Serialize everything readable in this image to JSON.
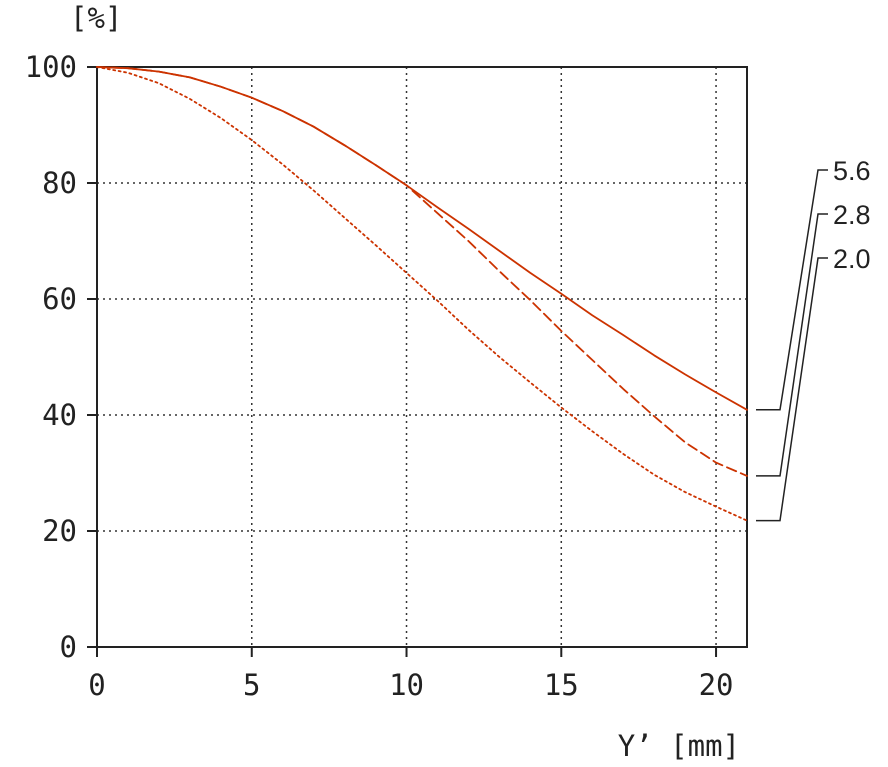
{
  "chart_data": {
    "type": "line",
    "xlabel": "Y’  [mm]",
    "ylabel": "[%]",
    "xlim": [
      0,
      21
    ],
    "ylim": [
      0,
      100
    ],
    "xticks": [
      0,
      5,
      10,
      15,
      20
    ],
    "yticks": [
      0,
      20,
      40,
      60,
      80,
      100
    ],
    "grid": true,
    "legend_placement": "right",
    "series": [
      {
        "name": "5.6",
        "style": "solid",
        "color": "#cc3300",
        "x": [
          0,
          1,
          2,
          3,
          4,
          5,
          6,
          7,
          8,
          9,
          10,
          11,
          12,
          13,
          14,
          15,
          16,
          17,
          18,
          19,
          20,
          21
        ],
        "y": [
          100,
          99.8,
          99.2,
          98.2,
          96.6,
          94.7,
          92.4,
          89.7,
          86.5,
          83.1,
          79.6,
          75.8,
          72.1,
          68.3,
          64.5,
          60.9,
          57.2,
          53.8,
          50.3,
          47.0,
          43.9,
          40.9
        ]
      },
      {
        "name": "2.8",
        "style": "dashed",
        "color": "#cc3300",
        "x": [
          0,
          1,
          2,
          3,
          4,
          5,
          6,
          7,
          8,
          9,
          10,
          11,
          12,
          13,
          14,
          15,
          16,
          17,
          18,
          19,
          20,
          21
        ],
        "y": [
          100,
          99.8,
          99.2,
          98.2,
          96.6,
          94.7,
          92.4,
          89.7,
          86.5,
          83.1,
          79.6,
          74.8,
          70.0,
          64.8,
          59.8,
          54.5,
          49.5,
          44.5,
          39.8,
          35.3,
          31.8,
          29.5
        ]
      },
      {
        "name": "2.0",
        "style": "dotted",
        "color": "#cc3300",
        "x": [
          0,
          1,
          2,
          3,
          4,
          5,
          6,
          7,
          8,
          9,
          10,
          11,
          12,
          13,
          14,
          15,
          16,
          17,
          18,
          19,
          20,
          21
        ],
        "y": [
          100,
          99.0,
          97.2,
          94.5,
          91.2,
          87.4,
          83.2,
          78.7,
          74.0,
          69.3,
          64.5,
          59.7,
          54.7,
          50.0,
          45.6,
          41.3,
          37.2,
          33.3,
          29.7,
          26.7,
          24.2,
          21.8
        ]
      }
    ]
  }
}
